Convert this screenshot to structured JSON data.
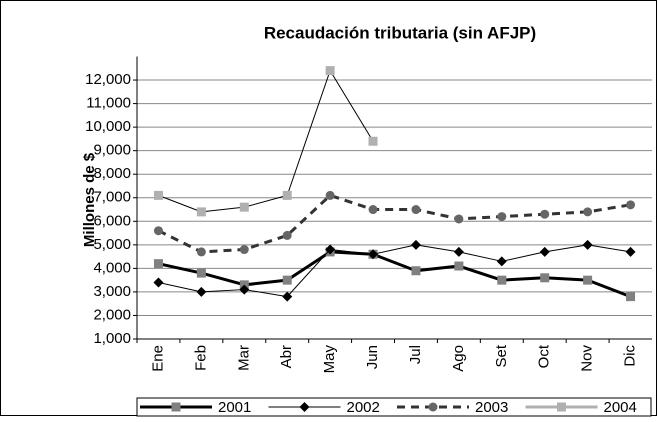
{
  "chart_data": {
    "type": "line",
    "title": "Recaudación tributaria (sin AFJP)",
    "y_label": "Millones de $",
    "categories": [
      "Ene",
      "Feb",
      "Mar",
      "Abr",
      "May",
      "Jun",
      "Jul",
      "Ago",
      "Set",
      "Oct",
      "Nov",
      "Dic"
    ],
    "series": [
      {
        "name": "2001",
        "color": "#000000",
        "marker_color": "#808080",
        "marker": "square",
        "line_width": 3,
        "dash": false,
        "values": [
          4200,
          3800,
          3300,
          3500,
          4700,
          4600,
          3900,
          4100,
          3500,
          3600,
          3500,
          2800
        ]
      },
      {
        "name": "2002",
        "color": "#000000",
        "marker_color": "#000000",
        "marker": "diamond",
        "line_width": 1,
        "dash": false,
        "values": [
          3400,
          3000,
          3100,
          2800,
          4800,
          4600,
          5000,
          4700,
          4300,
          4700,
          5000,
          4700
        ]
      },
      {
        "name": "2003",
        "color": "#333333",
        "marker_color": "#666666",
        "marker": "circle",
        "line_width": 3,
        "dash": true,
        "values": [
          5600,
          4700,
          4800,
          5400,
          7100,
          6500,
          6500,
          6100,
          6200,
          6300,
          6400,
          6700
        ]
      },
      {
        "name": "2004",
        "color": "#000000",
        "marker_color": "#b0b0b0",
        "marker": "square",
        "line_width": 1,
        "dash": false,
        "values": [
          7100,
          6400,
          6600,
          7100,
          12400,
          9400,
          null,
          null,
          null,
          null,
          null,
          null
        ]
      }
    ],
    "ylim": [
      1000,
      13000
    ],
    "yticks": [
      {
        "value": 1000,
        "label": "1,000"
      },
      {
        "value": 2000,
        "label": "2,000"
      },
      {
        "value": 3000,
        "label": "3,000"
      },
      {
        "value": 4000,
        "label": "4,000"
      },
      {
        "value": 5000,
        "label": "5,000"
      },
      {
        "value": 6000,
        "label": "6,000"
      },
      {
        "value": 7000,
        "label": "7,000"
      },
      {
        "value": 8000,
        "label": "8,000"
      },
      {
        "value": 9000,
        "label": "9,000"
      },
      {
        "value": 10000,
        "label": "10,000"
      },
      {
        "value": 11000,
        "label": "11,000"
      },
      {
        "value": 12000,
        "label": "12,000"
      }
    ],
    "grid": true,
    "legend": "bottom"
  }
}
